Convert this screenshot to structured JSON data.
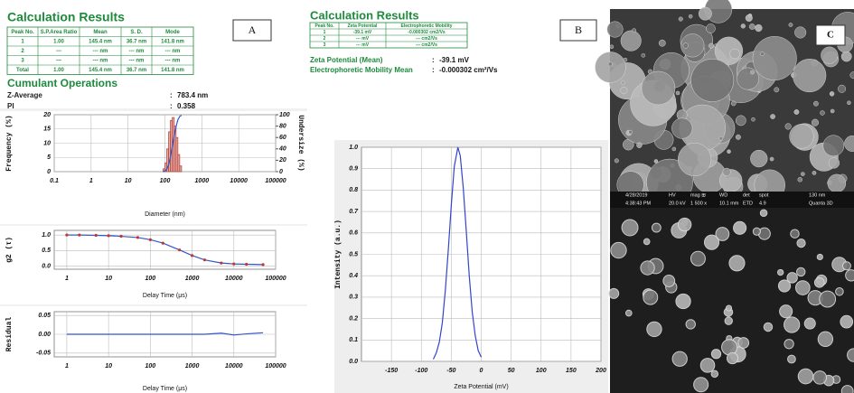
{
  "panel_labels": [
    "A",
    "B",
    "C"
  ],
  "panel_a": {
    "title": "Calculation Results",
    "table": {
      "header": [
        "Peak No.",
        "S.P.Area Ratio",
        "Mean",
        "S. D.",
        "Mode"
      ],
      "rows": [
        [
          "1",
          "1.00",
          "145.4 nm",
          "36.7 nm",
          "141.8 nm"
        ],
        [
          "2",
          "---",
          "--- nm",
          "--- nm",
          "--- nm"
        ],
        [
          "3",
          "---",
          "--- nm",
          "--- nm",
          "--- nm"
        ],
        [
          "Total",
          "1.00",
          "145.4 nm",
          "36.7 nm",
          "141.8 nm"
        ]
      ]
    },
    "cumulant_title": "Cumulant Operations",
    "stats": [
      {
        "label": "Z-Average",
        "sep": ":",
        "value": "783.4 nm"
      },
      {
        "label": "PI",
        "sep": ":",
        "value": "0.358"
      }
    ]
  },
  "panel_b": {
    "title": "Calculation Results",
    "table": {
      "header": [
        "Peak No.",
        "Zeta Potential",
        "Electrophoretic Mobility"
      ],
      "rows": [
        [
          "1",
          "-39.1 mV",
          "-0.000302 cm2/Vs"
        ],
        [
          "2",
          "--- mV",
          "--- cm2/Vs"
        ],
        [
          "3",
          "--- mV",
          "--- cm2/Vs"
        ]
      ]
    },
    "stats": [
      {
        "label": "Zeta Potential (Mean)",
        "sep": ":",
        "value": "-39.1 mV"
      },
      {
        "label": "Electrophoretic Mobility Mean",
        "sep": ":",
        "value": "-0.000302 cm²/Vs"
      }
    ]
  },
  "sem_info": [
    "4/28/2019",
    "4:38:43 PM",
    "HV",
    "20.0 kV",
    "mag ⊞",
    "1 500 x",
    "WD",
    "10.1 mm",
    "det",
    "ETD",
    "spot",
    "4.9",
    "130 nm",
    "Quanta 3D"
  ],
  "chart_data": [
    {
      "type": "histogram",
      "xlabel": "Diameter (nm)",
      "ylabel": "Frequency (%)",
      "y2label": "Undersize (%)",
      "xscale": "log",
      "xlim": [
        0.1,
        100000
      ],
      "xticks": [
        0.1,
        1,
        10,
        100,
        1000,
        10000,
        100000
      ],
      "ylim": [
        0,
        20
      ],
      "yticks": [
        0,
        5,
        10,
        15,
        20
      ],
      "y2lim": [
        0,
        100
      ],
      "y2ticks": [
        0,
        20,
        40,
        60,
        80,
        100
      ],
      "grid": true,
      "bins": [
        89,
        100,
        112,
        126,
        141,
        158,
        178,
        200,
        224,
        251,
        282
      ],
      "values": [
        1,
        3,
        8,
        14,
        18,
        19,
        16,
        12,
        6,
        2
      ],
      "color": "#b5473f",
      "line": {
        "axis": "y2",
        "color": "#3355cc",
        "x": [
          89,
          100,
          112,
          126,
          141,
          158,
          178,
          200,
          224,
          251,
          282
        ],
        "values": [
          0,
          1,
          4,
          12,
          26,
          44,
          63,
          79,
          91,
          97,
          99
        ]
      }
    },
    {
      "type": "line",
      "xlabel": "Delay Time (μs)",
      "ylabel": "g2 (τ)",
      "xscale": "log",
      "xlim": [
        0.5,
        100000
      ],
      "xticks": [
        1,
        10,
        100,
        1000,
        10000,
        100000
      ],
      "ylim": [
        -0.1,
        1.15
      ],
      "yticks": [
        {
          "value": 0,
          "label": "0.0"
        },
        0.5,
        {
          "value": 1,
          "label": "1.0"
        }
      ],
      "grid": true,
      "x": [
        1,
        2,
        5,
        10,
        20,
        50,
        100,
        200,
        500,
        1000,
        2000,
        5000,
        10000,
        20000,
        50000
      ],
      "values": [
        1.0,
        1.0,
        0.99,
        0.98,
        0.96,
        0.92,
        0.85,
        0.74,
        0.52,
        0.34,
        0.2,
        0.1,
        0.07,
        0.06,
        0.05
      ],
      "color": "#3355cc",
      "markers": true,
      "marker_color": "#c0392b"
    },
    {
      "type": "line",
      "xlabel": "Delay Time (μs)",
      "ylabel": "Residual",
      "xscale": "log",
      "xlim": [
        0.5,
        100000
      ],
      "xticks": [
        1,
        10,
        100,
        1000,
        10000,
        100000
      ],
      "ylim": [
        -0.06,
        0.06
      ],
      "yticks": [
        -0.05,
        {
          "value": 0,
          "label": "0.00"
        },
        0.05
      ],
      "grid": true,
      "x": [
        1,
        2,
        5,
        10,
        20,
        50,
        100,
        200,
        500,
        1000,
        2000,
        5000,
        10000,
        20000,
        50000
      ],
      "values": [
        0,
        0,
        0,
        0,
        0,
        0,
        0,
        0,
        0,
        0,
        0,
        0.003,
        -0.002,
        0.001,
        0.004
      ],
      "color": "#3355cc"
    },
    {
      "type": "line",
      "xlabel": "Zeta Potential (mV)",
      "ylabel": "Intensity (a.u.)",
      "xlim": [
        -200,
        200
      ],
      "xticks": [
        -150,
        -100,
        -50,
        0,
        50,
        100,
        150,
        200
      ],
      "ylim": [
        0,
        1.0
      ],
      "yticks": [
        {
          "value": 0,
          "label": "0.0"
        },
        0.1,
        0.2,
        0.3,
        0.4,
        0.5,
        0.6,
        0.7,
        0.8,
        0.9,
        {
          "value": 1,
          "label": "1.0"
        }
      ],
      "grid": true,
      "x": [
        -80,
        -75,
        -70,
        -65,
        -60,
        -55,
        -50,
        -45,
        -39,
        -35,
        -30,
        -25,
        -20,
        -15,
        -10,
        -5,
        0
      ],
      "values": [
        0.01,
        0.04,
        0.09,
        0.18,
        0.33,
        0.52,
        0.73,
        0.91,
        1.0,
        0.96,
        0.81,
        0.61,
        0.4,
        0.23,
        0.12,
        0.05,
        0.02
      ],
      "color": "#3344cc"
    }
  ]
}
